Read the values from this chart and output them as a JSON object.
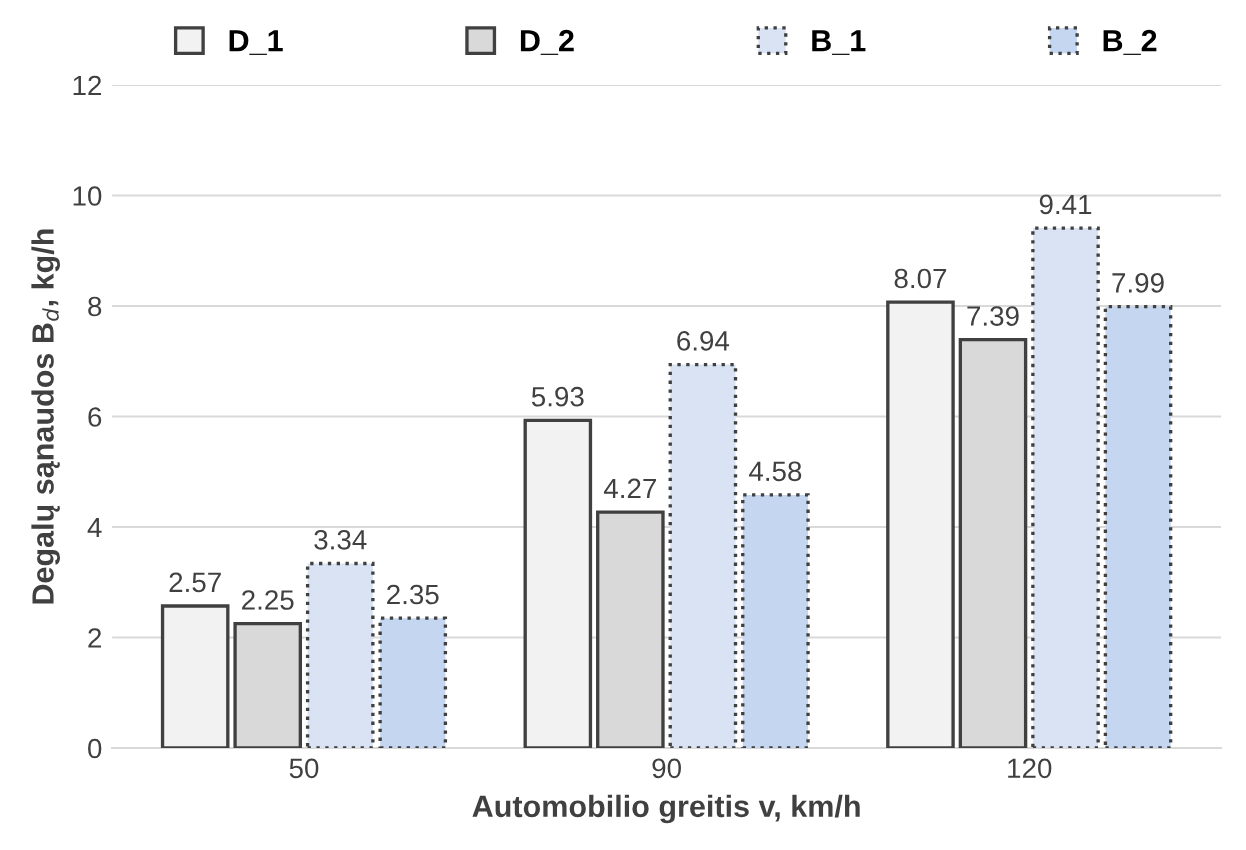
{
  "chart_data": {
    "type": "bar",
    "xlabel": "Automobilio greitis v, km/h",
    "ylabel": "Degalų sąnaudos B$_{d}$, kg/h",
    "categories": [
      "50",
      "90",
      "120"
    ],
    "series": [
      {
        "name": "D_1",
        "color": "#f2f2f2",
        "line_style": "solid",
        "values": [
          2.57,
          5.93,
          8.07
        ]
      },
      {
        "name": "D_2",
        "color": "#d9d9d9",
        "line_style": "solid",
        "values": [
          2.25,
          4.27,
          7.39
        ]
      },
      {
        "name": "B_1",
        "color": "#dae3f3",
        "line_style": "dotted",
        "values": [
          3.34,
          6.94,
          9.41
        ]
      },
      {
        "name": "B_2",
        "color": "#c5d7f0",
        "line_style": "dotted",
        "values": [
          2.35,
          4.58,
          7.99
        ]
      }
    ],
    "ylim": [
      0,
      12
    ],
    "yticks": [
      0,
      2,
      4,
      6,
      8,
      10,
      12
    ],
    "grid": "y",
    "legend": "top",
    "data_labels": true
  }
}
